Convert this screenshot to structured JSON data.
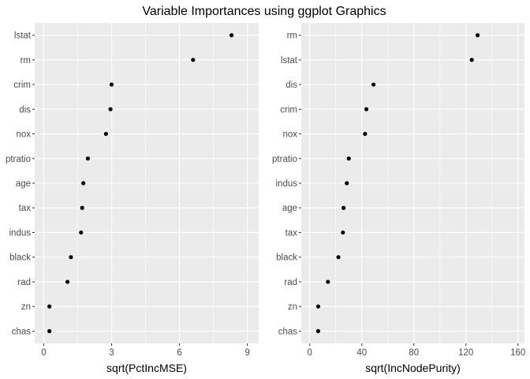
{
  "title": "Variable Importances using ggplot Graphics",
  "colors": {
    "panel_bg": "#ebebeb",
    "grid_major": "#ffffff",
    "point": "#000000",
    "tick_text": "#4d4d4d"
  },
  "chart_data": [
    {
      "type": "scatter",
      "xlabel": "sqrt(PctIncMSE)",
      "xlim": [
        -0.4,
        9.5
      ],
      "xticks": [
        0,
        3,
        6,
        9
      ],
      "xtick_labels": [
        "0",
        "3",
        "6",
        "9"
      ],
      "categories": [
        "lstat",
        "rm",
        "crim",
        "dis",
        "nox",
        "ptratio",
        "age",
        "tax",
        "indus",
        "black",
        "rad",
        "zn",
        "chas"
      ],
      "values": [
        8.3,
        6.6,
        3.0,
        2.95,
        2.75,
        1.95,
        1.75,
        1.7,
        1.65,
        1.2,
        1.05,
        0.25,
        0.25
      ],
      "grid": true
    },
    {
      "type": "scatter",
      "xlabel": "sqrt(IncNodePurity)",
      "xlim": [
        -6.5,
        165
      ],
      "xticks": [
        0,
        40,
        80,
        120,
        160
      ],
      "xtick_labels": [
        "0",
        "40",
        "80",
        "120",
        "160"
      ],
      "categories": [
        "rm",
        "lstat",
        "dis",
        "crim",
        "nox",
        "ptratio",
        "indus",
        "age",
        "tax",
        "black",
        "rad",
        "zn",
        "chas"
      ],
      "values": [
        129,
        124.5,
        49,
        43.5,
        42.5,
        30,
        28.5,
        26,
        25.5,
        22,
        14,
        6.5,
        6.5
      ],
      "grid": true
    }
  ]
}
